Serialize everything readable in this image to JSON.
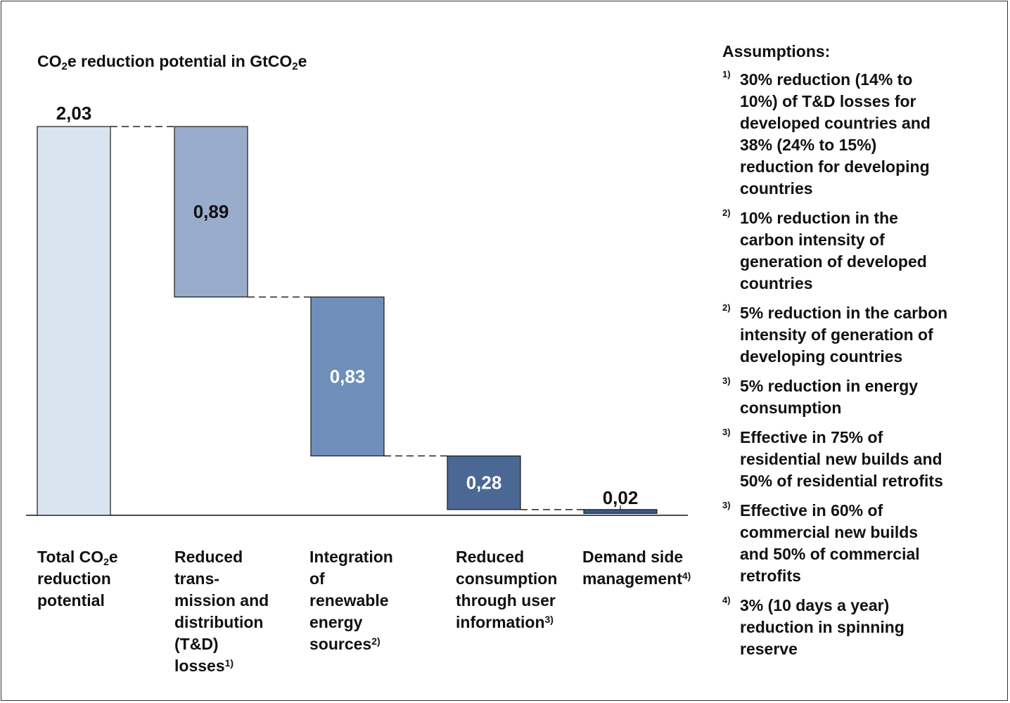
{
  "chart_data": {
    "type": "bar",
    "subtype": "waterfall",
    "title_parts": [
      "CO",
      "2",
      "e reduction potential in GtCO",
      "2",
      "e"
    ],
    "categories": [
      "Total CO2e reduction potential",
      "Reduced trans-mission and distribution (T&D) losses",
      "Integration of renewable energy sources",
      "Reduced consumption through user information",
      "Demand side management"
    ],
    "values": [
      2.03,
      0.89,
      0.83,
      0.28,
      0.02
    ],
    "value_labels": [
      "2,03",
      "0,89",
      "0,83",
      "0,28",
      "0,02"
    ],
    "bar_roles": [
      "total",
      "step",
      "step",
      "step",
      "step"
    ],
    "colors": [
      "#dae3f0",
      "#9aaccc",
      "#6f8fba",
      "#4b6895",
      "#3a5a8a"
    ],
    "value_label_colors": [
      "#111111",
      "#111111",
      "#ffffff",
      "#ffffff",
      "#111111"
    ],
    "ylim": [
      0,
      2.03
    ],
    "grid": false,
    "legend": "none",
    "connectors": "dashed"
  },
  "category_labels": [
    {
      "lines": [
        [
          {
            "t": "Total CO"
          },
          {
            "t": "2",
            "sub": true
          },
          {
            "t": "e"
          }
        ],
        [
          {
            "t": "reduction"
          }
        ],
        [
          {
            "t": "potential"
          }
        ]
      ]
    },
    {
      "lines": [
        [
          {
            "t": "Reduced"
          }
        ],
        [
          {
            "t": "trans-"
          }
        ],
        [
          {
            "t": "mission and"
          }
        ],
        [
          {
            "t": "distribution"
          }
        ],
        [
          {
            "t": "(T&D)"
          }
        ],
        [
          {
            "t": "losses"
          },
          {
            "t": "1)",
            "sup": true
          }
        ]
      ]
    },
    {
      "lines": [
        [
          {
            "t": "Integration"
          }
        ],
        [
          {
            "t": "of"
          }
        ],
        [
          {
            "t": "renewable"
          }
        ],
        [
          {
            "t": "energy"
          }
        ],
        [
          {
            "t": "sources"
          },
          {
            "t": "2)",
            "sup": true
          }
        ]
      ]
    },
    {
      "lines": [
        [
          {
            "t": "Reduced"
          }
        ],
        [
          {
            "t": "consumption"
          }
        ],
        [
          {
            "t": "through user"
          }
        ],
        [
          {
            "t": "information"
          },
          {
            "t": "3)",
            "sup": true
          }
        ]
      ]
    },
    {
      "lines": [
        [
          {
            "t": "Demand side"
          }
        ],
        [
          {
            "t": "management"
          },
          {
            "t": "4)",
            "sup": true
          }
        ]
      ]
    }
  ],
  "assumptions": {
    "title": "Assumptions:",
    "notes": [
      {
        "marker": "1)",
        "lines": [
          "30% reduction (14% to",
          "10%) of T&D losses for",
          "developed countries and",
          "38% (24% to 15%)",
          "reduction for developing",
          "countries"
        ]
      },
      {
        "marker": "2)",
        "lines": [
          "10% reduction in the",
          "carbon intensity of",
          "generation of developed",
          "countries"
        ]
      },
      {
        "marker": "2)",
        "lines": [
          "5% reduction in the carbon",
          "intensity of generation of",
          "developing countries"
        ]
      },
      {
        "marker": "3)",
        "lines": [
          "5% reduction in energy",
          "consumption"
        ]
      },
      {
        "marker": "3)",
        "lines": [
          "Effective in 75% of",
          "residential new builds and",
          "50% of residential retrofits"
        ]
      },
      {
        "marker": "3)",
        "lines": [
          "Effective in 60% of",
          "commercial new builds",
          "and 50% of commercial",
          "retrofits"
        ]
      },
      {
        "marker": "4)",
        "lines": [
          "3% (10 days a year)",
          "reduction in spinning",
          "reserve"
        ]
      }
    ]
  }
}
